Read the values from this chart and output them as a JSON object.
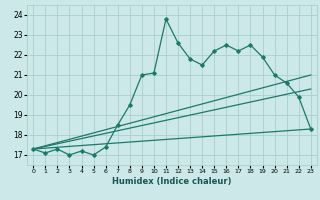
{
  "xlabel": "Humidex (Indice chaleur)",
  "ylabel": "",
  "bg_color": "#cce8e8",
  "grid_color": "#aacfcf",
  "line_color": "#1a7a6a",
  "xlim": [
    -0.5,
    23.5
  ],
  "ylim": [
    16.5,
    24.5
  ],
  "xticks": [
    0,
    1,
    2,
    3,
    4,
    5,
    6,
    7,
    8,
    9,
    10,
    11,
    12,
    13,
    14,
    15,
    16,
    17,
    18,
    19,
    20,
    21,
    22,
    23
  ],
  "yticks": [
    17,
    18,
    19,
    20,
    21,
    22,
    23,
    24
  ],
  "series1_x": [
    0,
    1,
    2,
    3,
    4,
    5,
    6,
    7,
    8,
    9,
    10,
    11,
    12,
    13,
    14,
    15,
    16,
    17,
    18,
    19,
    20,
    21,
    22,
    23
  ],
  "series1_y": [
    17.3,
    17.1,
    17.3,
    17.0,
    17.2,
    17.0,
    17.4,
    18.5,
    19.5,
    21.0,
    21.1,
    23.8,
    22.6,
    21.8,
    21.5,
    22.2,
    22.5,
    22.2,
    22.5,
    21.9,
    21.0,
    20.6,
    19.9,
    18.3
  ],
  "series2_x": [
    0,
    23
  ],
  "series2_y": [
    17.3,
    21.0
  ],
  "series3_x": [
    0,
    23
  ],
  "series3_y": [
    17.3,
    20.3
  ],
  "series4_x": [
    0,
    23
  ],
  "series4_y": [
    17.3,
    18.3
  ]
}
